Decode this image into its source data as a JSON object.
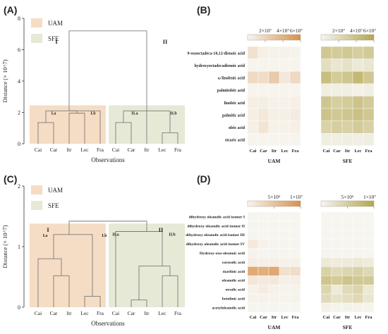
{
  "colors": {
    "uam_fill": "#f5dcc4",
    "sfe_fill": "#e7e9d7",
    "dendro_line": "#7a7a7a",
    "uam_high": "#d9904a",
    "sfe_high": "#b4a64e",
    "cell_empty": "#f4f4f2"
  },
  "chart_data": [
    {
      "panel": "(A)",
      "type": "dendrogram",
      "ylabel": "Distance (× 10^7)",
      "xlabel": "Observations",
      "ylim": [
        0,
        8
      ],
      "yticks": [
        "0",
        "2",
        "4",
        "6",
        "8"
      ],
      "leaves": [
        "Cai",
        "Car",
        "Itr",
        "Lec",
        "Fra",
        "Cai",
        "Car",
        "Itr",
        "Lec",
        "Fra"
      ],
      "legend": [
        {
          "label": "UAM",
          "color": "#f5dcc4"
        },
        {
          "label": "SFE",
          "color": "#e7e9d7"
        }
      ],
      "clusters": [
        "I",
        "II",
        "I.a",
        "I.b",
        "II.a",
        "II.b"
      ],
      "merges": [
        {
          "a": 0,
          "b": 1,
          "height": 1.35
        },
        {
          "a": 2,
          "b": 3,
          "height": 1.95
        },
        {
          "a": 1,
          "b": 3,
          "height": 2.1
        },
        {
          "a": 4,
          "b": 4,
          "height": 0
        },
        {
          "a": 5,
          "b": 6,
          "height": 1.35
        },
        {
          "a": 8,
          "b": 9,
          "height": 0.7
        },
        {
          "a": 6,
          "b": 9,
          "height": 2.1
        },
        {
          "a": 3,
          "b": 8,
          "height": 7.2
        }
      ]
    },
    {
      "panel": "(B)",
      "type": "heatmap",
      "rows": [
        "9-oxooctadeca-10,12-dienoic acid",
        "hydroxyoctadecadienoic acid",
        "ω linolenic acid",
        "palmitoleic acid",
        "linoleic acid",
        "palmitic acid",
        "oleic acid",
        "stearic acid"
      ],
      "columns": [
        "Cai",
        "Car",
        "Itr",
        "Lec",
        "Fra"
      ],
      "groups": [
        {
          "name": "UAM",
          "scale_ticks": [
            "2×10⁷",
            "4×10⁷",
            "6×10⁷"
          ],
          "scale_max": 60000000.0,
          "values": [
            [
              12000000.0,
              4000000.0,
              3000000.0,
              3000000.0,
              2000000.0
            ],
            [
              1000000.0,
              1000000.0,
              1000000.0,
              1000000.0,
              1000000.0
            ],
            [
              16000000.0,
              15000000.0,
              26000000.0,
              8000000.0,
              17000000.0
            ],
            [
              1000000.0,
              1000000.0,
              1000000.0,
              1000000.0,
              1000000.0
            ],
            [
              5000000.0,
              5000000.0,
              3000000.0,
              3000000.0,
              4000000.0
            ],
            [
              5000000.0,
              8000000.0,
              4000000.0,
              4000000.0,
              6000000.0
            ],
            [
              4000000.0,
              10000000.0,
              3000000.0,
              3000000.0,
              4000000.0
            ],
            [
              1000000.0,
              1000000.0,
              1000000.0,
              1000000.0,
              1000000.0
            ]
          ]
        },
        {
          "name": "SFE",
          "scale_ticks": [
            "2×10⁷",
            "4×10⁷",
            "6×10⁷"
          ],
          "scale_max": 60000000.0,
          "values": [
            [
              35000000.0,
              32000000.0,
              34000000.0,
              30000000.0,
              33000000.0
            ],
            [
              18000000.0,
              12000000.0,
              15000000.0,
              10000000.0,
              12000000.0
            ],
            [
              42000000.0,
              32000000.0,
              36000000.0,
              46000000.0,
              35000000.0
            ],
            [
              6000000.0,
              5000000.0,
              5000000.0,
              4000000.0,
              5000000.0
            ],
            [
              36000000.0,
              30000000.0,
              32000000.0,
              38000000.0,
              33000000.0
            ],
            [
              38000000.0,
              34000000.0,
              36000000.0,
              40000000.0,
              35000000.0
            ],
            [
              26000000.0,
              30000000.0,
              28000000.0,
              32000000.0,
              28000000.0
            ],
            [
              6000000.0,
              5000000.0,
              6000000.0,
              5000000.0,
              6000000.0
            ]
          ]
        }
      ]
    },
    {
      "panel": "(C)",
      "type": "dendrogram",
      "ylabel": "Distance (× 10^7)",
      "xlabel": "Observations",
      "ylim": [
        0,
        2
      ],
      "yticks": [
        "0",
        "1",
        "2"
      ],
      "leaves": [
        "Cai",
        "Car",
        "Itr",
        "Lec",
        "Fra",
        "Cai",
        "Car",
        "Itr",
        "Lec",
        "Fra"
      ],
      "legend": [
        {
          "label": "UAM",
          "color": "#f5dcc4"
        },
        {
          "label": "SFE",
          "color": "#e7e9d7"
        }
      ],
      "clusters": [
        "I",
        "II",
        "I.a",
        "I.b",
        "II.a",
        "II.b"
      ],
      "merges": [
        {
          "a": 1,
          "b": 2,
          "height": 0.52
        },
        {
          "a": 0,
          "b": 2,
          "height": 0.8
        },
        {
          "a": 3,
          "b": 4,
          "height": 0.18
        },
        {
          "a": 2,
          "b": 4,
          "height": 1.2
        },
        {
          "a": 6,
          "b": 7,
          "height": 0.12
        },
        {
          "a": 8,
          "b": 9,
          "height": 0.52
        },
        {
          "a": 7,
          "b": 9,
          "height": 0.68
        },
        {
          "a": 5,
          "b": 9,
          "height": 1.25
        },
        {
          "a": 4,
          "b": 7,
          "height": 1.42
        }
      ]
    },
    {
      "panel": "(D)",
      "type": "heatmap",
      "rows": [
        "dihydroxy oleanolic acid isomer I",
        "dihydroxy oleanolic acid isomer II",
        "dihydroxy oleanolic acid isomer III",
        "dihydroxy oleanolic acid isomer IV",
        "Hydroxy-oxo-oleanoic acid",
        "corosolic acid",
        "maslinic acid",
        "oleanolic acid",
        "ursolic acid",
        "betulinic acid",
        "acetyloleanolic acid"
      ],
      "columns": [
        "Cai",
        "Car",
        "Itr",
        "Lec",
        "Fra"
      ],
      "groups": [
        {
          "name": "UAM",
          "scale_ticks": [
            "5×10⁶",
            "1×10⁷"
          ],
          "scale_max": 10000000.0,
          "values": [
            [
              200000.0,
              100000.0,
              100000.0,
              100000.0,
              100000.0
            ],
            [
              200000.0,
              100000.0,
              100000.0,
              100000.0,
              100000.0
            ],
            [
              200000.0,
              100000.0,
              100000.0,
              100000.0,
              100000.0
            ],
            [
              1200000.0,
              400000.0,
              200000.0,
              200000.0,
              200000.0
            ],
            [
              300000.0,
              200000.0,
              200000.0,
              100000.0,
              100000.0
            ],
            [
              800000.0,
              600000.0,
              600000.0,
              400000.0,
              500000.0
            ],
            [
              7500000.0,
              7000000.0,
              7600000.0,
              2200000.0,
              2500000.0
            ],
            [
              1500000.0,
              1200000.0,
              1300000.0,
              600000.0,
              800000.0
            ],
            [
              500000.0,
              1000000.0,
              400000.0,
              300000.0,
              300000.0
            ],
            [
              400000.0,
              400000.0,
              300000.0,
              300000.0,
              300000.0
            ],
            [
              200000.0,
              200000.0,
              200000.0,
              100000.0,
              100000.0
            ]
          ]
        },
        {
          "name": "SFE",
          "scale_ticks": [
            "5×10⁶",
            "1×10⁷"
          ],
          "scale_max": 10000000.0,
          "values": [
            [
              100000.0,
              100000.0,
              100000.0,
              100000.0,
              100000.0
            ],
            [
              100000.0,
              100000.0,
              100000.0,
              100000.0,
              100000.0
            ],
            [
              100000.0,
              100000.0,
              100000.0,
              100000.0,
              100000.0
            ],
            [
              200000.0,
              100000.0,
              100000.0,
              100000.0,
              100000.0
            ],
            [
              200000.0,
              100000.0,
              100000.0,
              100000.0,
              100000.0
            ],
            [
              1500000.0,
              1200000.0,
              1400000.0,
              1600000.0,
              1200000.0
            ],
            [
              4500000.0,
              3500000.0,
              4000000.0,
              4600000.0,
              3800000.0
            ],
            [
              6000000.0,
              5500000.0,
              6200000.0,
              5800000.0,
              5600000.0
            ],
            [
              4000000.0,
              1500000.0,
              3500000.0,
              4200000.0,
              1800000.0
            ],
            [
              3500000.0,
              2500000.0,
              3000000.0,
              3600000.0,
              2000000.0
            ],
            [
              600000.0,
              300000.0,
              400000.0,
              500000.0,
              300000.0
            ]
          ]
        }
      ]
    }
  ]
}
